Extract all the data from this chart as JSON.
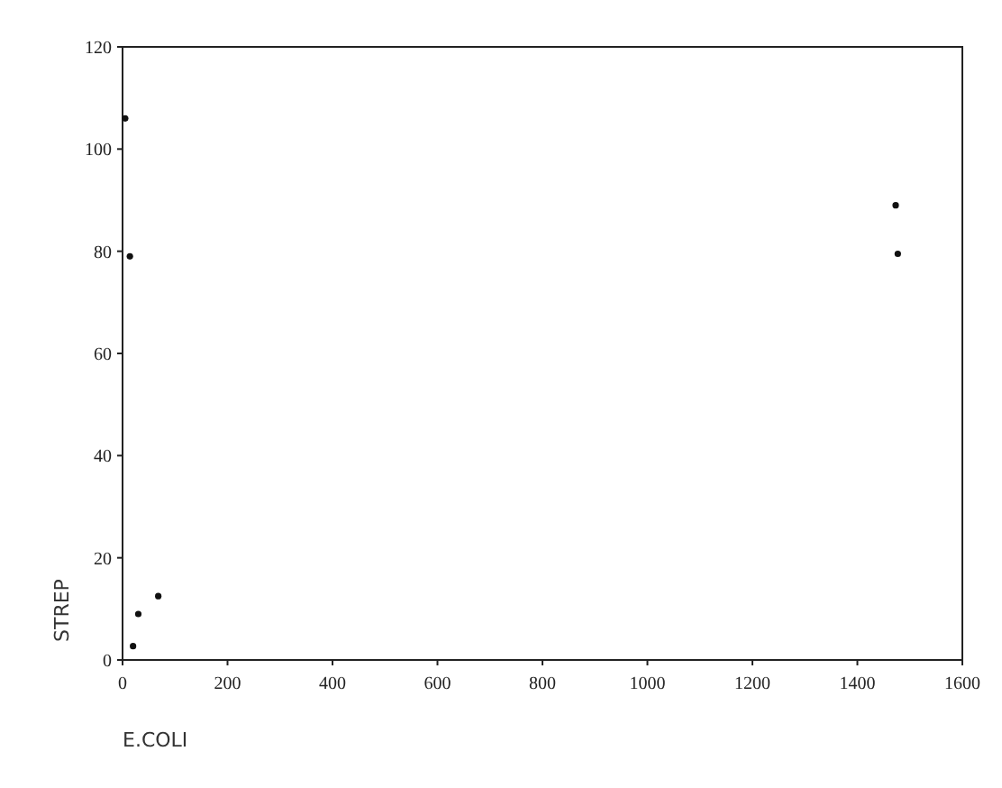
{
  "chart_data": {
    "type": "scatter",
    "xlabel": "E.COLI",
    "ylabel": "STREP",
    "x": [
      5,
      14,
      30,
      68,
      20,
      1473,
      1477
    ],
    "values": [
      106,
      79,
      9,
      12.5,
      2.7,
      89,
      79.5
    ],
    "color": "#111111",
    "marker": "circle",
    "xlim": [
      0,
      1600
    ],
    "xticks": [
      0,
      200,
      400,
      600,
      800,
      1000,
      1200,
      1400,
      1600
    ],
    "ylim": [
      0,
      120
    ],
    "yticks": [
      0,
      20,
      40,
      60,
      80,
      100,
      120
    ]
  }
}
